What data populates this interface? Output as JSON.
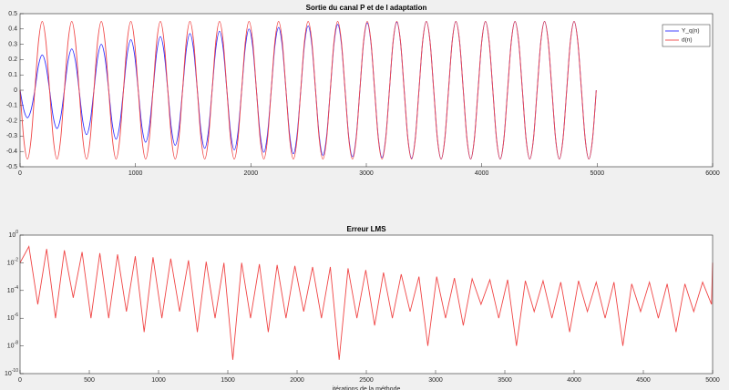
{
  "chart_data": [
    {
      "type": "line",
      "title": "Sortie du canal P et de l adaptation",
      "x": [
        0,
        32,
        64,
        96,
        128,
        160,
        192,
        224,
        256,
        288,
        320,
        352,
        384,
        416,
        448,
        480,
        512,
        544,
        576,
        608,
        640,
        672,
        704,
        736,
        768,
        800,
        832,
        864,
        896,
        928,
        960,
        992,
        1024,
        1056,
        1088,
        1120,
        1152,
        1184,
        1216,
        1248,
        1280,
        1312,
        1344,
        1376,
        1408,
        1440,
        1472,
        1504,
        1536,
        1568,
        1600,
        1632,
        1664,
        1696,
        1728,
        1760,
        1792,
        1824,
        1856,
        1888,
        1920,
        1952,
        1984,
        2016,
        2048,
        2080,
        2112,
        2144,
        2176,
        2208,
        2240,
        2272,
        2304,
        2336,
        2368,
        2400,
        2432,
        2464,
        2496,
        2528,
        2560,
        2592,
        2624,
        2656,
        2688,
        2720,
        2752,
        2784,
        2816,
        2848,
        2880,
        2912,
        2944,
        2976,
        3008,
        3040,
        3072,
        3104,
        3136,
        3168,
        3200,
        3232,
        3264,
        3296,
        3328,
        3360,
        3392,
        3424,
        3456,
        3488,
        3520,
        3552,
        3584,
        3616,
        3648,
        3680,
        3712,
        3744,
        3776,
        3808,
        3840,
        3872,
        3904,
        3936,
        3968,
        4000,
        4032,
        4064,
        4096,
        4128,
        4160,
        4192,
        4224,
        4256,
        4288,
        4320,
        4352,
        4384,
        4416,
        4448,
        4480,
        4512,
        4544,
        4576,
        4608,
        4640,
        4672,
        4704,
        4736,
        4768,
        4800,
        4832,
        4864,
        4896,
        4928,
        4960,
        4992
      ],
      "series": [
        {
          "name": "Y_q(n)",
          "color": "#2b2bff",
          "values": [
            0,
            -0.127,
            -0.18,
            -0.127,
            0,
            0.163,
            0.23,
            0.163,
            0,
            -0.177,
            -0.25,
            -0.177,
            0,
            0.191,
            0.27,
            0.191,
            0,
            -0.205,
            -0.29,
            -0.205,
            0,
            0.212,
            0.3,
            0.212,
            0,
            -0.226,
            -0.32,
            -0.226,
            0,
            0.233,
            0.33,
            0.233,
            0,
            -0.24,
            -0.34,
            -0.24,
            0,
            0.247,
            0.35,
            0.247,
            0,
            -0.255,
            -0.36,
            -0.255,
            0,
            0.262,
            0.37,
            0.262,
            0,
            -0.269,
            -0.38,
            -0.269,
            0,
            0.272,
            0.385,
            0.272,
            0,
            -0.276,
            -0.39,
            -0.276,
            0,
            0.283,
            0.4,
            0.283,
            0,
            -0.286,
            -0.405,
            -0.286,
            0,
            0.29,
            0.41,
            0.29,
            0,
            -0.293,
            -0.415,
            -0.293,
            0,
            0.297,
            0.42,
            0.297,
            0,
            -0.3,
            -0.425,
            -0.3,
            0,
            0.304,
            0.43,
            0.304,
            0,
            -0.308,
            -0.435,
            -0.308,
            0,
            0.311,
            0.44,
            0.311,
            0,
            -0.311,
            -0.44,
            -0.311,
            0,
            0.315,
            0.445,
            0.315,
            0,
            -0.315,
            -0.445,
            -0.315,
            0,
            0.318,
            0.45,
            0.318,
            0,
            -0.318,
            -0.45,
            -0.318,
            0,
            0.318,
            0.45,
            0.318,
            0,
            -0.318,
            -0.45,
            -0.318,
            0,
            0.318,
            0.45,
            0.318,
            0,
            -0.318,
            -0.45,
            -0.318,
            0,
            0.318,
            0.45,
            0.318,
            0,
            -0.318,
            -0.45,
            -0.318,
            0,
            0.318,
            0.45,
            0.318,
            0,
            -0.318,
            -0.45,
            -0.318,
            0,
            0.318,
            0.45,
            0.318,
            0,
            -0.318,
            -0.45,
            -0.318,
            0
          ]
        },
        {
          "name": "d(n)",
          "color": "#f04545",
          "values": [
            0,
            -0.318,
            -0.45,
            -0.318,
            0,
            0.318,
            0.45,
            0.318,
            0,
            -0.318,
            -0.45,
            -0.318,
            0,
            0.318,
            0.45,
            0.318,
            0,
            -0.318,
            -0.45,
            -0.318,
            0,
            0.318,
            0.45,
            0.318,
            0,
            -0.318,
            -0.45,
            -0.318,
            0,
            0.318,
            0.45,
            0.318,
            0,
            -0.318,
            -0.45,
            -0.318,
            0,
            0.318,
            0.45,
            0.318,
            0,
            -0.318,
            -0.45,
            -0.318,
            0,
            0.318,
            0.45,
            0.318,
            0,
            -0.318,
            -0.45,
            -0.318,
            0,
            0.318,
            0.45,
            0.318,
            0,
            -0.318,
            -0.45,
            -0.318,
            0,
            0.318,
            0.45,
            0.318,
            0,
            -0.318,
            -0.45,
            -0.318,
            0,
            0.318,
            0.45,
            0.318,
            0,
            -0.318,
            -0.45,
            -0.318,
            0,
            0.318,
            0.45,
            0.318,
            0,
            -0.318,
            -0.45,
            -0.318,
            0,
            0.318,
            0.45,
            0.318,
            0,
            -0.318,
            -0.45,
            -0.318,
            0,
            0.318,
            0.45,
            0.318,
            0,
            -0.318,
            -0.45,
            -0.318,
            0,
            0.318,
            0.45,
            0.318,
            0,
            -0.318,
            -0.45,
            -0.318,
            0,
            0.318,
            0.45,
            0.318,
            0,
            -0.318,
            -0.45,
            -0.318,
            0,
            0.318,
            0.45,
            0.318,
            0,
            -0.318,
            -0.45,
            -0.318,
            0,
            0.318,
            0.45,
            0.318,
            0,
            -0.318,
            -0.45,
            -0.318,
            0,
            0.318,
            0.45,
            0.318,
            0,
            -0.318,
            -0.45,
            -0.318,
            0,
            0.318,
            0.45,
            0.318,
            0,
            -0.318,
            -0.45,
            -0.318,
            0,
            0.318,
            0.45,
            0.318,
            0,
            -0.318,
            -0.45,
            -0.318,
            0
          ]
        }
      ],
      "xlim": [
        0,
        6000
      ],
      "xticks": [
        0,
        1000,
        2000,
        3000,
        4000,
        5000,
        6000
      ],
      "ylim": [
        -0.5,
        0.5
      ],
      "yticks": [
        -0.5,
        -0.4,
        -0.3,
        -0.2,
        -0.1,
        0,
        0.1,
        0.2,
        0.3,
        0.4,
        0.5
      ],
      "legend": "northeast"
    },
    {
      "type": "line",
      "title": "Erreur LMS",
      "xlabel": "itérations de la méthode",
      "yscale": "log",
      "color": "#f04545",
      "x": [
        0,
        64,
        128,
        192,
        256,
        320,
        384,
        448,
        512,
        576,
        640,
        704,
        768,
        832,
        896,
        960,
        1024,
        1088,
        1152,
        1216,
        1280,
        1344,
        1408,
        1472,
        1536,
        1600,
        1664,
        1728,
        1792,
        1856,
        1920,
        1984,
        2048,
        2112,
        2176,
        2240,
        2304,
        2368,
        2432,
        2496,
        2560,
        2624,
        2688,
        2752,
        2816,
        2880,
        2944,
        3008,
        3072,
        3136,
        3200,
        3264,
        3328,
        3392,
        3456,
        3520,
        3584,
        3648,
        3712,
        3776,
        3840,
        3904,
        3968,
        4032,
        4096,
        4160,
        4224,
        4288,
        4352,
        4416,
        4480,
        4544,
        4608,
        4672,
        4736,
        4800,
        4864,
        4928,
        4992,
        5000
      ],
      "values": [
        0.01,
        0.15,
        1e-05,
        0.1,
        1e-06,
        0.08,
        3e-05,
        0.06,
        1e-06,
        0.05,
        1e-06,
        0.04,
        3e-06,
        0.03,
        1e-07,
        0.025,
        1e-06,
        0.02,
        3e-06,
        0.015,
        1e-07,
        0.012,
        1e-06,
        0.01,
        1e-09,
        0.01,
        1e-06,
        0.008,
        1e-07,
        0.007,
        1e-06,
        0.006,
        3e-06,
        0.005,
        1e-06,
        0.005,
        1e-09,
        0.004,
        1e-06,
        0.003,
        3e-07,
        0.002,
        1e-06,
        0.0015,
        3e-06,
        0.001,
        1e-08,
        0.001,
        1e-06,
        0.0008,
        3e-07,
        0.0007,
        1e-05,
        0.0006,
        1e-06,
        0.0006,
        1e-08,
        0.0005,
        3e-06,
        0.0005,
        1e-06,
        0.0004,
        1e-07,
        0.0005,
        3e-06,
        0.0004,
        1e-06,
        0.0004,
        1e-08,
        0.0003,
        3e-06,
        0.0004,
        1e-06,
        0.0003,
        1e-07,
        0.0003,
        3e-06,
        0.0004,
        1e-05,
        0.01
      ],
      "xlim": [
        0,
        5000
      ],
      "xticks": [
        0,
        500,
        1000,
        1500,
        2000,
        2500,
        3000,
        3500,
        4000,
        4500,
        5000
      ],
      "ylim": [
        1e-10,
        1
      ],
      "yticks": [
        {
          "value": 1e-10,
          "label": "10",
          "exponent": "-10"
        },
        {
          "value": 1e-08,
          "label": "10",
          "exponent": "-8"
        },
        {
          "value": 1e-06,
          "label": "10",
          "exponent": "-6"
        },
        {
          "value": 0.0001,
          "label": "10",
          "exponent": "-4"
        },
        {
          "value": 0.01,
          "label": "10",
          "exponent": "-2"
        },
        {
          "value": 1,
          "label": "10",
          "exponent": "0"
        }
      ]
    }
  ]
}
